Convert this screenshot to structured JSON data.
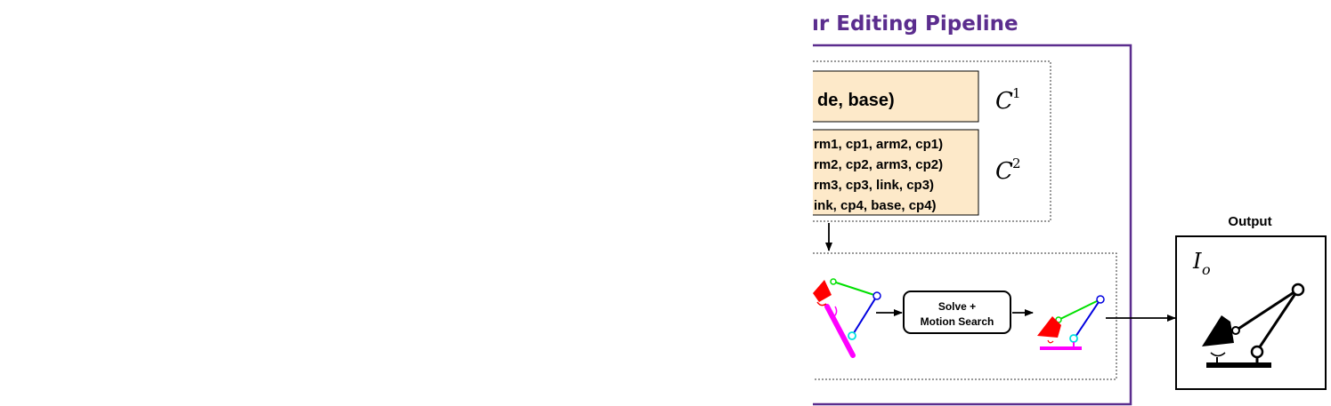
{
  "title": "ır Editing Pipeline",
  "constraints": {
    "c1": {
      "lines": [
        "de, base)"
      ],
      "symbol": "C",
      "superscript": "1"
    },
    "c2": {
      "lines": [
        "rm1, cp1, arm2, cp1)",
        "rm2, cp2, arm3, cp2)",
        "rm3, cp3, link, cp3)",
        "ink, cp4, base, cp4)"
      ],
      "symbol": "C",
      "superscript": "2"
    }
  },
  "solver": {
    "lines": [
      "Solve +",
      "Motion Search"
    ]
  },
  "output": {
    "label": "Output",
    "symbol": "I",
    "subscript": "o"
  },
  "colors": {
    "purple_frame": "#5b2d8e",
    "box_fill": "#fde9c9",
    "lamp_head": "#ff0000",
    "arm_green": "#00e000",
    "arm_blue": "#0000e0",
    "joint_cyan": "#00e0e0",
    "base_magenta": "#ff00ff"
  }
}
